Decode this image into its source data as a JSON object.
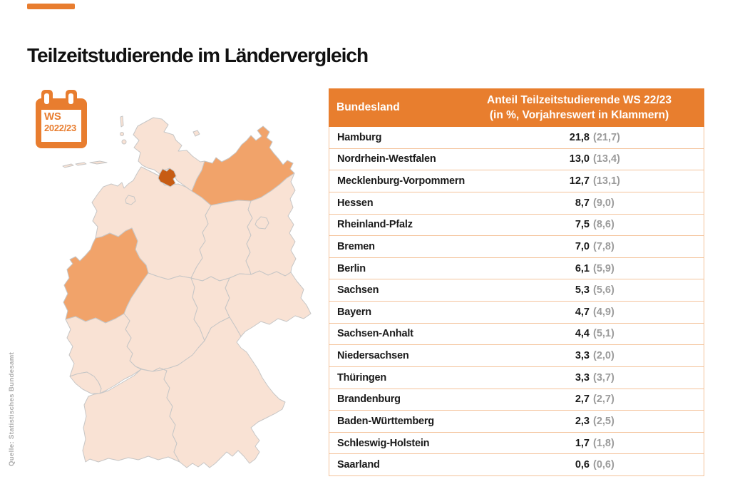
{
  "title": "Teilzeitstudierende im Ländervergleich",
  "badge": {
    "line1": "WS",
    "line2": "2022/23"
  },
  "source": "Quelle: Statistisches Bundesamt",
  "colors": {
    "accent_orange": "#e87e2e",
    "map_light": "#f9e2d4",
    "map_medium": "#f1a36a",
    "map_dark": "#c75c13",
    "row_border": "#f4c39b",
    "prev_value_gray": "#9b9b9b",
    "source_gray": "#aaaaaa"
  },
  "table": {
    "header": {
      "col1": "Bundesland",
      "col2_line1": "Anteil Teilzeitstudierende WS 22/23",
      "col2_line2": "(in %, Vorjahreswert in Klammern)"
    },
    "rows": [
      {
        "state": "Hamburg",
        "value": "21,8",
        "prev": "(21,7)"
      },
      {
        "state": "Nordrhein-Westfalen",
        "value": "13,0",
        "prev": "(13,4)"
      },
      {
        "state": "Mecklenburg-Vorpommern",
        "value": "12,7",
        "prev": "(13,1)"
      },
      {
        "state": "Hessen",
        "value": "8,7",
        "prev": "(9,0)"
      },
      {
        "state": "Rheinland-Pfalz",
        "value": "7,5",
        "prev": "(8,6)"
      },
      {
        "state": "Bremen",
        "value": "7,0",
        "prev": "(7,8)"
      },
      {
        "state": "Berlin",
        "value": "6,1",
        "prev": "(5,9)"
      },
      {
        "state": "Sachsen",
        "value": "5,3",
        "prev": "(5,6)"
      },
      {
        "state": "Bayern",
        "value": "4,7",
        "prev": "(4,9)"
      },
      {
        "state": "Sachsen-Anhalt",
        "value": "4,4",
        "prev": "(5,1)"
      },
      {
        "state": "Niedersachsen",
        "value": "3,3",
        "prev": "(2,0)"
      },
      {
        "state": "Thüringen",
        "value": "3,3",
        "prev": "(3,7)"
      },
      {
        "state": "Brandenburg",
        "value": "2,7",
        "prev": "(2,7)"
      },
      {
        "state": "Baden-Württemberg",
        "value": "2,3",
        "prev": "(2,5)"
      },
      {
        "state": "Schleswig-Holstein",
        "value": "1,7",
        "prev": "(1,8)"
      },
      {
        "state": "Saarland",
        "value": "0,6",
        "prev": "(0,6)"
      }
    ]
  },
  "chart_data": {
    "type": "table",
    "title": "Teilzeitstudierende im Ländervergleich",
    "period": "WS 2022/23",
    "columns": [
      "Bundesland",
      "Anteil Teilzeitstudierende WS 22/23 (in %, Vorjahreswert in Klammern)"
    ],
    "categories": [
      "Hamburg",
      "Nordrhein-Westfalen",
      "Mecklenburg-Vorpommern",
      "Hessen",
      "Rheinland-Pfalz",
      "Bremen",
      "Berlin",
      "Sachsen",
      "Bayern",
      "Sachsen-Anhalt",
      "Niedersachsen",
      "Thüringen",
      "Brandenburg",
      "Baden-Württemberg",
      "Schleswig-Holstein",
      "Saarland"
    ],
    "series": [
      {
        "name": "WS 22/23",
        "values": [
          21.8,
          13.0,
          12.7,
          8.7,
          7.5,
          7.0,
          6.1,
          5.3,
          4.7,
          4.4,
          3.3,
          3.3,
          2.7,
          2.3,
          1.7,
          0.6
        ]
      },
      {
        "name": "Vorjahreswert",
        "values": [
          21.7,
          13.4,
          13.1,
          9.0,
          8.6,
          7.8,
          5.9,
          5.6,
          4.9,
          5.1,
          2.0,
          3.7,
          2.7,
          2.5,
          1.8,
          0.6
        ]
      }
    ],
    "map": {
      "region": "Deutschland (Bundesländer)",
      "highlight_dark": [
        "Hamburg"
      ],
      "highlight_medium": [
        "Nordrhein-Westfalen",
        "Mecklenburg-Vorpommern"
      ],
      "base_fill": "#f9e2d4",
      "medium_fill": "#f1a36a",
      "dark_fill": "#c75c13"
    },
    "source": "Quelle: Statistisches Bundesamt"
  }
}
